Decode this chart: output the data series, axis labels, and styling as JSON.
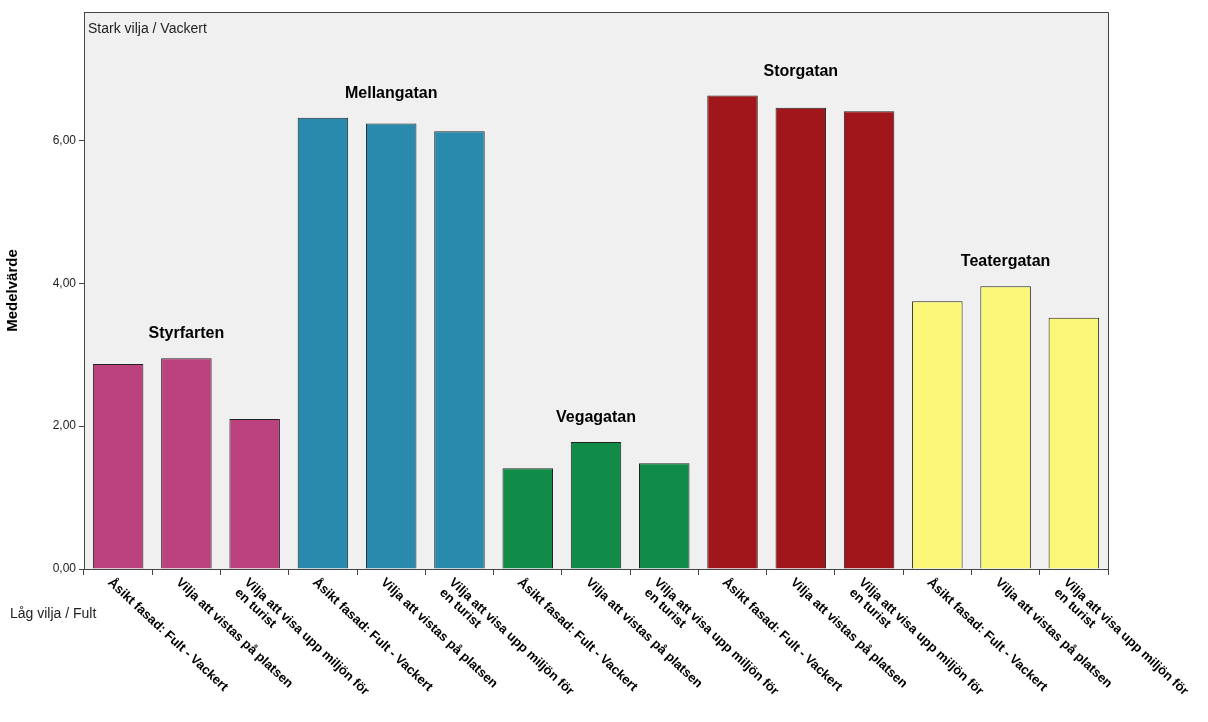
{
  "chart_data": {
    "type": "bar",
    "ylabel": "Medelvärde",
    "categories": [
      "Åsikt fasad: Fult - Vackert",
      "Vilja att vistas på platsen",
      "Vilja att visa upp miljön för en turist",
      "Åsikt fasad: Fult - Vackert",
      "Vilja att vistas på platsen",
      "Vilja att visa upp miljön för en turist",
      "Åsikt fasad: Fult - Vackert",
      "Vilja att vistas på platsen",
      "Vilja att visa upp miljön för en turist",
      "Åsikt fasad: Fult - Vackert",
      "Vilja att vistas på platsen",
      "Vilja att visa upp miljön för en turist",
      "Åsikt fasad: Fult - Vackert",
      "Vilja att vistas på platsen",
      "Vilja att visa upp miljön för en turist"
    ],
    "series": [
      {
        "name": "Styrfarten",
        "color": "#bc417f",
        "values": [
          2.87,
          2.95,
          2.1,
          null,
          null,
          null,
          null,
          null,
          null,
          null,
          null,
          null,
          null,
          null,
          null
        ]
      },
      {
        "name": "Mellangatan",
        "color": "#2a8aae",
        "values": [
          null,
          null,
          null,
          6.32,
          6.24,
          6.13,
          null,
          null,
          null,
          null,
          null,
          null,
          null,
          null,
          null
        ]
      },
      {
        "name": "Vegagatan",
        "color": "#118c48",
        "values": [
          null,
          null,
          null,
          null,
          null,
          null,
          1.41,
          1.78,
          1.48,
          null,
          null,
          null,
          null,
          null,
          null
        ]
      },
      {
        "name": "Storgatan",
        "color": "#a0161b",
        "values": [
          null,
          null,
          null,
          null,
          null,
          null,
          null,
          null,
          null,
          6.63,
          6.46,
          6.41,
          null,
          null,
          null
        ]
      },
      {
        "name": "Teatergatan",
        "color": "#fbf779",
        "values": [
          null,
          null,
          null,
          null,
          null,
          null,
          null,
          null,
          null,
          null,
          null,
          null,
          3.75,
          3.96,
          3.52
        ]
      }
    ],
    "ylim": [
      0,
      7.8
    ],
    "yticks": [
      {
        "value": 0,
        "label": "0,00"
      },
      {
        "value": 2,
        "label": "2,00"
      },
      {
        "value": 4,
        "label": "4,00"
      },
      {
        "value": 6,
        "label": "6,00"
      }
    ],
    "annotations": [
      "Stark vilja / Vackert",
      "Låg vilja / Fult"
    ]
  }
}
